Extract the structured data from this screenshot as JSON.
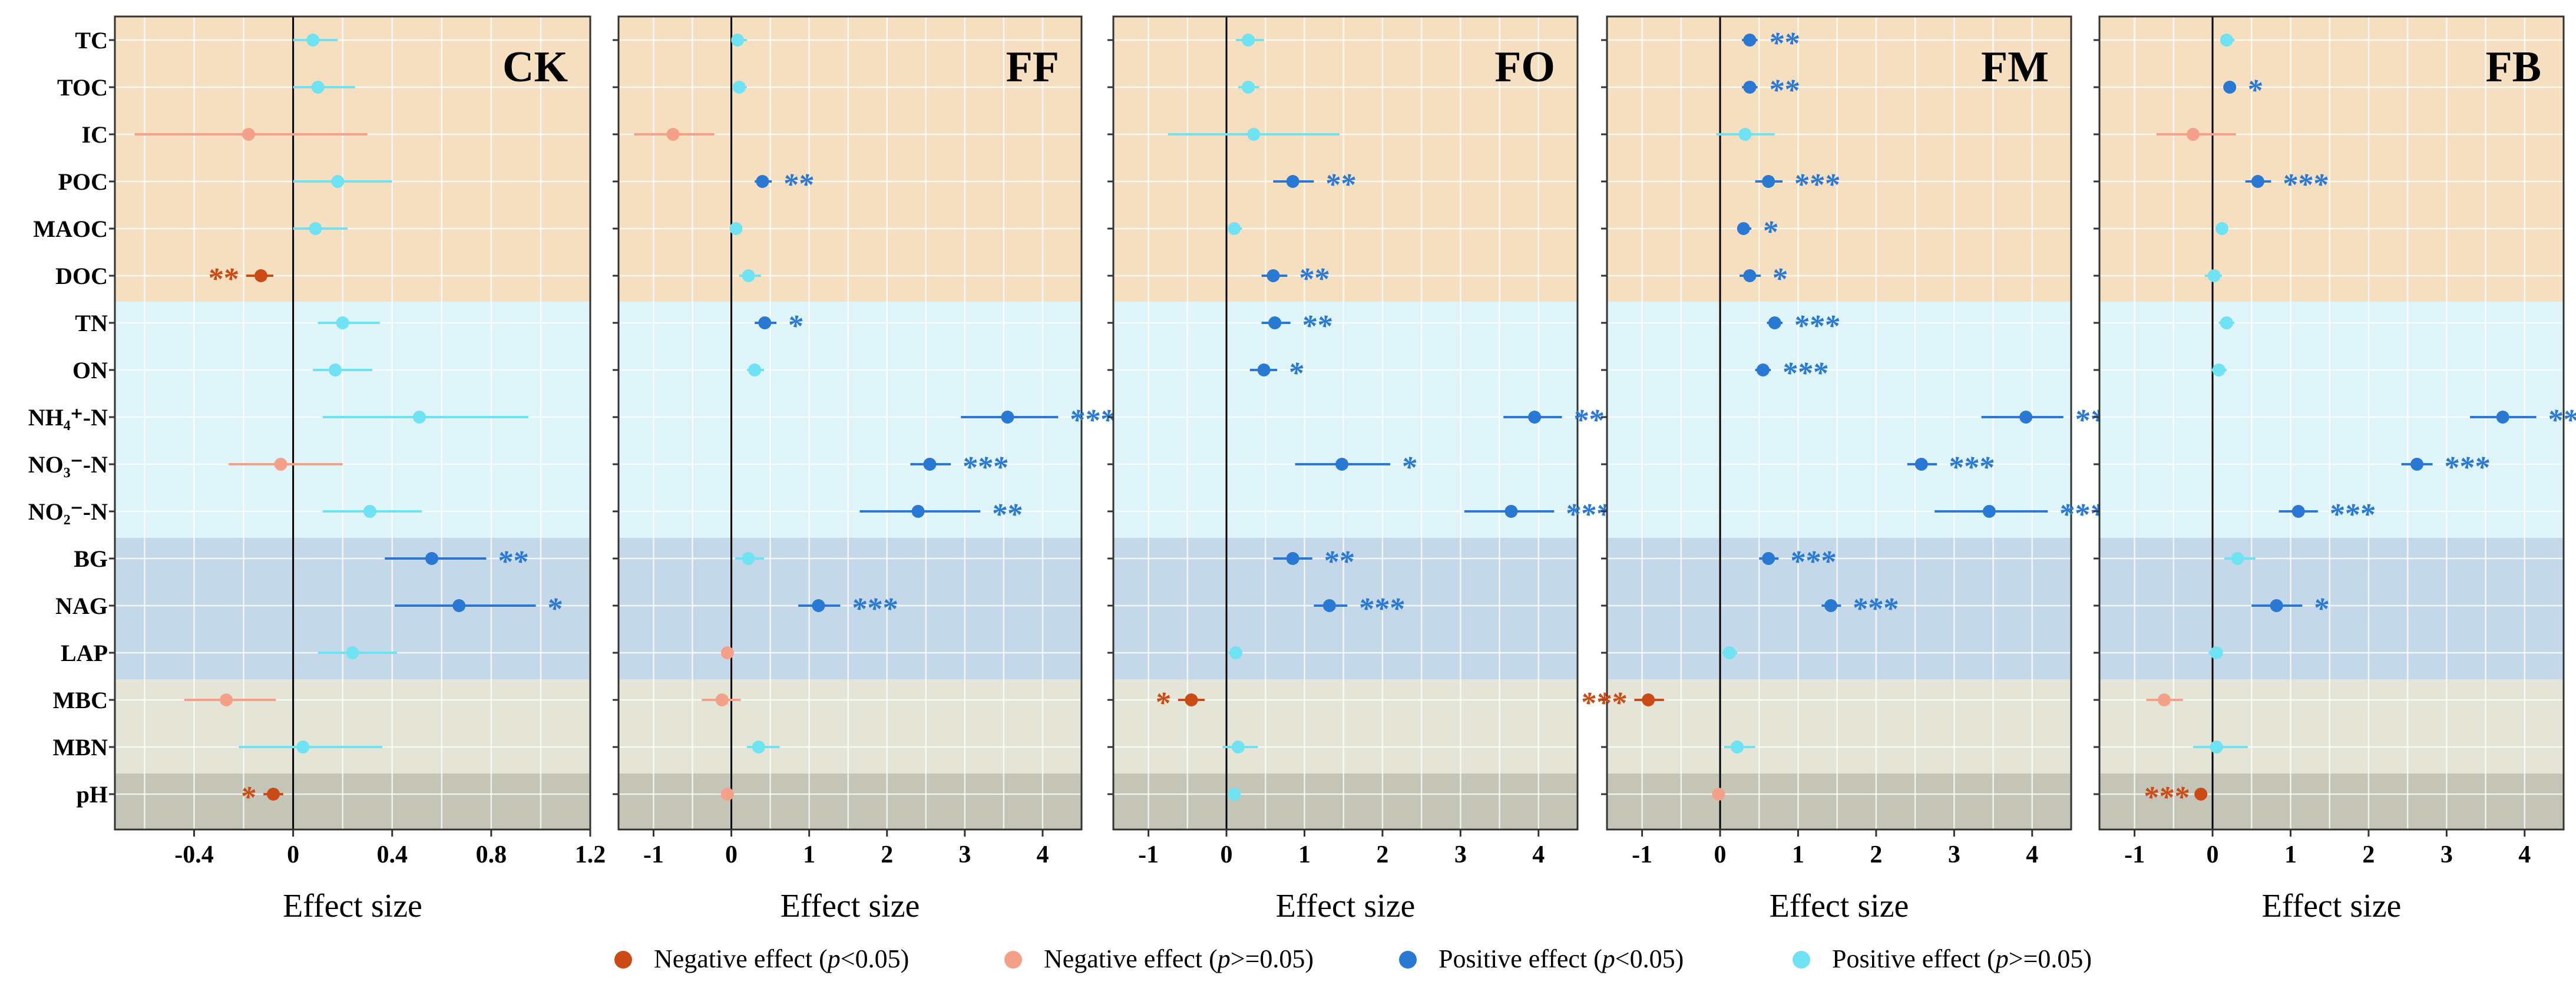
{
  "chart_data": {
    "type": "scatter",
    "description_kind": "forest plot, effect size with 95% CI",
    "variables": [
      "TC",
      "TOC",
      "IC",
      "POC",
      "MAOC",
      "DOC",
      "TN",
      "ON",
      "NH₄⁺-N",
      "NO₃⁻-N",
      "NO₂⁻-N",
      "BG",
      "NAG",
      "LAP",
      "MBC",
      "MBN",
      "pH"
    ],
    "groups": [
      {
        "bands": [
          "#f5dfc0",
          "#dff4f9",
          "#c5d8e9",
          "#e4e5d6",
          "#c4c5b6"
        ],
        "band_spans": [
          [
            0,
            5
          ],
          [
            6,
            10
          ],
          [
            11,
            13
          ],
          [
            14,
            15
          ],
          [
            16,
            16
          ]
        ]
      }
    ],
    "colors": {
      "neg_sig": "#cc4a15",
      "neg_ns": "#f5a088",
      "pos_sig": "#2979d4",
      "pos_ns": "#6fe3f3",
      "zero_line": "#000000",
      "grid": "#ffffff",
      "frame": "#333333"
    },
    "xlabel": "Effect size",
    "panels": [
      {
        "title": "CK",
        "xlim": [
          -0.72,
          1.2
        ],
        "ticks": [
          -0.4,
          0,
          0.4,
          0.8,
          1.2
        ],
        "tick_labels": [
          "-0.4",
          "0",
          "0.4",
          "0.8",
          "1.2"
        ],
        "points": [
          {
            "mean": 0.08,
            "lo": 0.0,
            "hi": 0.18,
            "cls": "pos_ns",
            "sig": ""
          },
          {
            "mean": 0.1,
            "lo": 0.0,
            "hi": 0.25,
            "cls": "pos_ns",
            "sig": ""
          },
          {
            "mean": -0.18,
            "lo": -0.64,
            "hi": 0.3,
            "cls": "neg_ns",
            "sig": ""
          },
          {
            "mean": 0.18,
            "lo": 0.0,
            "hi": 0.4,
            "cls": "pos_ns",
            "sig": ""
          },
          {
            "mean": 0.09,
            "lo": 0.0,
            "hi": 0.22,
            "cls": "pos_ns",
            "sig": ""
          },
          {
            "mean": -0.13,
            "lo": -0.19,
            "hi": -0.08,
            "cls": "neg_sig",
            "sig": "**"
          },
          {
            "mean": 0.2,
            "lo": 0.1,
            "hi": 0.35,
            "cls": "pos_ns",
            "sig": ""
          },
          {
            "mean": 0.17,
            "lo": 0.08,
            "hi": 0.32,
            "cls": "pos_ns",
            "sig": ""
          },
          {
            "mean": 0.51,
            "lo": 0.12,
            "hi": 0.95,
            "cls": "pos_ns",
            "sig": ""
          },
          {
            "mean": -0.05,
            "lo": -0.26,
            "hi": 0.2,
            "cls": "neg_ns",
            "sig": ""
          },
          {
            "mean": 0.31,
            "lo": 0.12,
            "hi": 0.52,
            "cls": "pos_ns",
            "sig": ""
          },
          {
            "mean": 0.56,
            "lo": 0.37,
            "hi": 0.78,
            "cls": "pos_sig",
            "sig": "**"
          },
          {
            "mean": 0.67,
            "lo": 0.41,
            "hi": 0.98,
            "cls": "pos_sig",
            "sig": "*"
          },
          {
            "mean": 0.24,
            "lo": 0.1,
            "hi": 0.42,
            "cls": "pos_ns",
            "sig": ""
          },
          {
            "mean": -0.27,
            "lo": -0.44,
            "hi": -0.07,
            "cls": "neg_ns",
            "sig": ""
          },
          {
            "mean": 0.04,
            "lo": -0.22,
            "hi": 0.36,
            "cls": "pos_ns",
            "sig": ""
          },
          {
            "mean": -0.08,
            "lo": -0.12,
            "hi": -0.04,
            "cls": "neg_sig",
            "sig": "*"
          }
        ]
      },
      {
        "title": "FF",
        "xlim": [
          -1.45,
          4.5
        ],
        "ticks": [
          -1,
          0,
          1,
          2,
          3,
          4
        ],
        "tick_labels": [
          "-1",
          "0",
          "1",
          "2",
          "3",
          "4"
        ],
        "points": [
          {
            "mean": 0.08,
            "lo": 0.0,
            "hi": 0.2,
            "cls": "pos_ns",
            "sig": ""
          },
          {
            "mean": 0.1,
            "lo": 0.02,
            "hi": 0.2,
            "cls": "pos_ns",
            "sig": ""
          },
          {
            "mean": -0.75,
            "lo": -1.25,
            "hi": -0.22,
            "cls": "neg_ns",
            "sig": ""
          },
          {
            "mean": 0.4,
            "lo": 0.3,
            "hi": 0.52,
            "cls": "pos_sig",
            "sig": "**"
          },
          {
            "mean": 0.06,
            "lo": 0.0,
            "hi": 0.14,
            "cls": "pos_ns",
            "sig": ""
          },
          {
            "mean": 0.22,
            "lo": 0.1,
            "hi": 0.38,
            "cls": "pos_ns",
            "sig": ""
          },
          {
            "mean": 0.43,
            "lo": 0.3,
            "hi": 0.58,
            "cls": "pos_sig",
            "sig": "*"
          },
          {
            "mean": 0.3,
            "lo": 0.2,
            "hi": 0.42,
            "cls": "pos_ns",
            "sig": ""
          },
          {
            "mean": 3.55,
            "lo": 2.95,
            "hi": 4.2,
            "cls": "pos_sig",
            "sig": "***"
          },
          {
            "mean": 2.55,
            "lo": 2.3,
            "hi": 2.82,
            "cls": "pos_sig",
            "sig": "***"
          },
          {
            "mean": 2.4,
            "lo": 1.65,
            "hi": 3.2,
            "cls": "pos_sig",
            "sig": "**"
          },
          {
            "mean": 0.22,
            "lo": 0.05,
            "hi": 0.42,
            "cls": "pos_ns",
            "sig": ""
          },
          {
            "mean": 1.12,
            "lo": 0.86,
            "hi": 1.4,
            "cls": "pos_sig",
            "sig": "***"
          },
          {
            "mean": -0.05,
            "lo": -0.12,
            "hi": 0.0,
            "cls": "neg_ns",
            "sig": ""
          },
          {
            "mean": -0.12,
            "lo": -0.38,
            "hi": 0.12,
            "cls": "neg_ns",
            "sig": ""
          },
          {
            "mean": 0.35,
            "lo": 0.2,
            "hi": 0.62,
            "cls": "pos_ns",
            "sig": ""
          },
          {
            "mean": -0.05,
            "lo": -0.1,
            "hi": 0.0,
            "cls": "neg_ns",
            "sig": ""
          }
        ]
      },
      {
        "title": "FO",
        "xlim": [
          -1.45,
          4.5
        ],
        "ticks": [
          -1,
          0,
          1,
          2,
          3,
          4
        ],
        "tick_labels": [
          "-1",
          "0",
          "1",
          "2",
          "3",
          "4"
        ],
        "points": [
          {
            "mean": 0.28,
            "lo": 0.12,
            "hi": 0.48,
            "cls": "pos_ns",
            "sig": ""
          },
          {
            "mean": 0.28,
            "lo": 0.15,
            "hi": 0.42,
            "cls": "pos_ns",
            "sig": ""
          },
          {
            "mean": 0.35,
            "lo": -0.75,
            "hi": 1.45,
            "cls": "pos_ns",
            "sig": ""
          },
          {
            "mean": 0.85,
            "lo": 0.6,
            "hi": 1.12,
            "cls": "pos_sig",
            "sig": "**"
          },
          {
            "mean": 0.1,
            "lo": 0.02,
            "hi": 0.2,
            "cls": "pos_ns",
            "sig": ""
          },
          {
            "mean": 0.6,
            "lo": 0.45,
            "hi": 0.78,
            "cls": "pos_sig",
            "sig": "**"
          },
          {
            "mean": 0.62,
            "lo": 0.45,
            "hi": 0.82,
            "cls": "pos_sig",
            "sig": "**"
          },
          {
            "mean": 0.48,
            "lo": 0.3,
            "hi": 0.65,
            "cls": "pos_sig",
            "sig": "*"
          },
          {
            "mean": 3.95,
            "lo": 3.55,
            "hi": 4.3,
            "cls": "pos_sig",
            "sig": "***"
          },
          {
            "mean": 1.48,
            "lo": 0.88,
            "hi": 2.1,
            "cls": "pos_sig",
            "sig": "*"
          },
          {
            "mean": 3.65,
            "lo": 3.05,
            "hi": 4.2,
            "cls": "pos_sig",
            "sig": "***"
          },
          {
            "mean": 0.85,
            "lo": 0.6,
            "hi": 1.1,
            "cls": "pos_sig",
            "sig": "**"
          },
          {
            "mean": 1.32,
            "lo": 1.12,
            "hi": 1.55,
            "cls": "pos_sig",
            "sig": "***"
          },
          {
            "mean": 0.12,
            "lo": 0.02,
            "hi": 0.2,
            "cls": "pos_ns",
            "sig": ""
          },
          {
            "mean": -0.45,
            "lo": -0.62,
            "hi": -0.28,
            "cls": "neg_sig",
            "sig": "*"
          },
          {
            "mean": 0.15,
            "lo": -0.05,
            "hi": 0.4,
            "cls": "pos_ns",
            "sig": ""
          },
          {
            "mean": 0.1,
            "lo": 0.05,
            "hi": 0.16,
            "cls": "pos_ns",
            "sig": ""
          }
        ]
      },
      {
        "title": "FM",
        "xlim": [
          -1.45,
          4.5
        ],
        "ticks": [
          -1,
          0,
          1,
          2,
          3,
          4
        ],
        "tick_labels": [
          "-1",
          "0",
          "1",
          "2",
          "3",
          "4"
        ],
        "points": [
          {
            "mean": 0.38,
            "lo": 0.28,
            "hi": 0.48,
            "cls": "pos_sig",
            "sig": "**"
          },
          {
            "mean": 0.38,
            "lo": 0.28,
            "hi": 0.48,
            "cls": "pos_sig",
            "sig": "**"
          },
          {
            "mean": 0.32,
            "lo": -0.05,
            "hi": 0.7,
            "cls": "pos_ns",
            "sig": ""
          },
          {
            "mean": 0.62,
            "lo": 0.45,
            "hi": 0.8,
            "cls": "pos_sig",
            "sig": "***"
          },
          {
            "mean": 0.3,
            "lo": 0.22,
            "hi": 0.4,
            "cls": "pos_sig",
            "sig": "*"
          },
          {
            "mean": 0.38,
            "lo": 0.25,
            "hi": 0.52,
            "cls": "pos_sig",
            "sig": "*"
          },
          {
            "mean": 0.7,
            "lo": 0.6,
            "hi": 0.8,
            "cls": "pos_sig",
            "sig": "***"
          },
          {
            "mean": 0.55,
            "lo": 0.45,
            "hi": 0.65,
            "cls": "pos_sig",
            "sig": "***"
          },
          {
            "mean": 3.92,
            "lo": 3.35,
            "hi": 4.4,
            "cls": "pos_sig",
            "sig": "***"
          },
          {
            "mean": 2.58,
            "lo": 2.4,
            "hi": 2.78,
            "cls": "pos_sig",
            "sig": "***"
          },
          {
            "mean": 3.45,
            "lo": 2.75,
            "hi": 4.2,
            "cls": "pos_sig",
            "sig": "***"
          },
          {
            "mean": 0.62,
            "lo": 0.5,
            "hi": 0.75,
            "cls": "pos_sig",
            "sig": "***"
          },
          {
            "mean": 1.42,
            "lo": 1.3,
            "hi": 1.55,
            "cls": "pos_sig",
            "sig": "***"
          },
          {
            "mean": 0.12,
            "lo": 0.02,
            "hi": 0.22,
            "cls": "pos_ns",
            "sig": ""
          },
          {
            "mean": -0.92,
            "lo": -1.1,
            "hi": -0.72,
            "cls": "neg_sig",
            "sig": "***"
          },
          {
            "mean": 0.22,
            "lo": 0.05,
            "hi": 0.45,
            "cls": "pos_ns",
            "sig": ""
          },
          {
            "mean": -0.02,
            "lo": -0.06,
            "hi": 0.0,
            "cls": "neg_ns",
            "sig": ""
          }
        ]
      },
      {
        "title": "FB",
        "xlim": [
          -1.45,
          4.5
        ],
        "ticks": [
          -1,
          0,
          1,
          2,
          3,
          4
        ],
        "tick_labels": [
          "-1",
          "0",
          "1",
          "2",
          "3",
          "4"
        ],
        "points": [
          {
            "mean": 0.18,
            "lo": 0.1,
            "hi": 0.28,
            "cls": "pos_ns",
            "sig": ""
          },
          {
            "mean": 0.22,
            "lo": 0.14,
            "hi": 0.3,
            "cls": "pos_sig",
            "sig": "*"
          },
          {
            "mean": -0.25,
            "lo": -0.72,
            "hi": 0.3,
            "cls": "neg_ns",
            "sig": ""
          },
          {
            "mean": 0.58,
            "lo": 0.42,
            "hi": 0.75,
            "cls": "pos_sig",
            "sig": "***"
          },
          {
            "mean": 0.12,
            "lo": 0.05,
            "hi": 0.2,
            "cls": "pos_ns",
            "sig": ""
          },
          {
            "mean": 0.02,
            "lo": -0.1,
            "hi": 0.12,
            "cls": "pos_ns",
            "sig": ""
          },
          {
            "mean": 0.18,
            "lo": 0.08,
            "hi": 0.28,
            "cls": "pos_ns",
            "sig": ""
          },
          {
            "mean": 0.08,
            "lo": -0.02,
            "hi": 0.18,
            "cls": "pos_ns",
            "sig": ""
          },
          {
            "mean": 3.72,
            "lo": 3.3,
            "hi": 4.15,
            "cls": "pos_sig",
            "sig": "***"
          },
          {
            "mean": 2.62,
            "lo": 2.42,
            "hi": 2.82,
            "cls": "pos_sig",
            "sig": "***"
          },
          {
            "mean": 1.1,
            "lo": 0.85,
            "hi": 1.35,
            "cls": "pos_sig",
            "sig": "***"
          },
          {
            "mean": 0.32,
            "lo": 0.15,
            "hi": 0.55,
            "cls": "pos_ns",
            "sig": ""
          },
          {
            "mean": 0.82,
            "lo": 0.5,
            "hi": 1.15,
            "cls": "pos_sig",
            "sig": "*"
          },
          {
            "mean": 0.05,
            "lo": -0.05,
            "hi": 0.12,
            "cls": "pos_ns",
            "sig": ""
          },
          {
            "mean": -0.62,
            "lo": -0.85,
            "hi": -0.38,
            "cls": "neg_ns",
            "sig": ""
          },
          {
            "mean": 0.05,
            "lo": -0.25,
            "hi": 0.45,
            "cls": "pos_ns",
            "sig": ""
          },
          {
            "mean": -0.15,
            "lo": -0.2,
            "hi": -0.1,
            "cls": "neg_sig",
            "sig": "***"
          }
        ]
      }
    ],
    "legend": [
      {
        "cls": "neg_sig",
        "pre": "Negative effect (",
        "p": "p",
        "post": "<0.05)"
      },
      {
        "cls": "neg_ns",
        "pre": "Negative effect (",
        "p": "p",
        "post": ">=0.05)"
      },
      {
        "cls": "pos_sig",
        "pre": "Positive effect (",
        "p": "p",
        "post": "<0.05)"
      },
      {
        "cls": "pos_ns",
        "pre": "Positive effect (",
        "p": "p",
        "post": ">=0.05)"
      }
    ]
  }
}
